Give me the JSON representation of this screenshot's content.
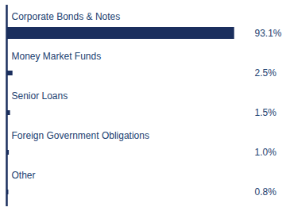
{
  "chart_data": {
    "type": "bar",
    "orientation": "horizontal",
    "categories": [
      "Corporate Bonds & Notes",
      "Money Market Funds",
      "Senior Loans",
      "Foreign Government Obligations",
      "Other"
    ],
    "values": [
      93.1,
      2.5,
      1.5,
      1.0,
      0.8
    ],
    "value_labels": [
      "93.1%",
      "2.5%",
      "1.5%",
      "1.0%",
      "0.8%"
    ],
    "data_labels": true,
    "color": "#1b2f5e",
    "xlim": [
      0,
      100
    ],
    "tick_labels": false,
    "grid": false
  }
}
